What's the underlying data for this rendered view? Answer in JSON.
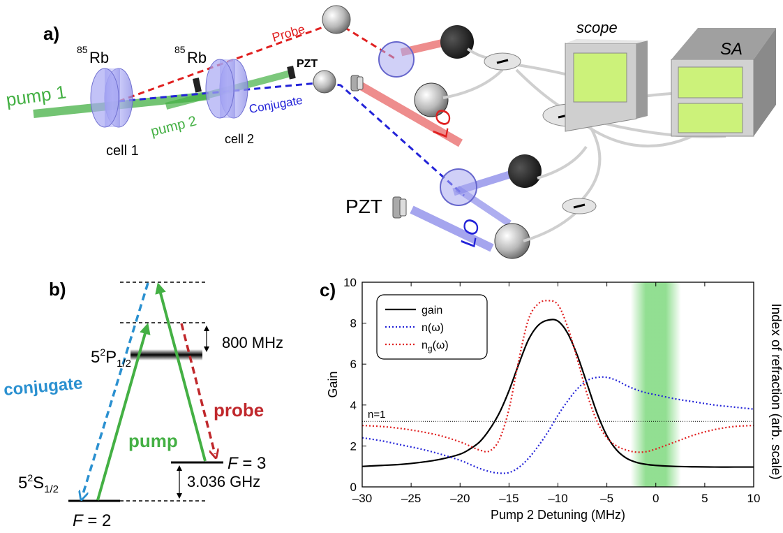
{
  "panel_a": {
    "panel_label": "a)",
    "cell1_iso_sup": "85",
    "cell1_iso": "Rb",
    "cell2_iso_sup": "85",
    "cell2_iso": "Rb",
    "pump1": "pump 1",
    "pump2": "pump 2",
    "cell1": "cell 1",
    "cell2": "cell 2",
    "probe": "Probe",
    "conjugate": "Conjugate",
    "pzt_top": "PZT",
    "pzt_bottom": "PZT",
    "lo_top": "LO",
    "lo_bottom": "LO",
    "scope": "scope",
    "sa": "SA"
  },
  "panel_b": {
    "panel_label": "b)",
    "p_state": "5",
    "p_state_sup": "2",
    "p_state_rest": "P",
    "p_state_sub": "1/2",
    "s_state": "5",
    "s_state_sup": "2",
    "s_state_rest": "S",
    "s_state_sub": "1/2",
    "detuning": "800 MHz",
    "hyperfine": "3.036 GHz",
    "conjugate": "conjugate",
    "pump": "pump",
    "probe": "probe",
    "f3_var": "F",
    "f3_eq": " = 3",
    "f2_var": "F",
    "f2_eq": " = 2"
  },
  "panel_c": {
    "panel_label": "c)",
    "legend": {
      "gain": "gain",
      "n": "n(ω)",
      "ng_main": "n",
      "ng_sub": "g",
      "ng_rest": "(ω)"
    },
    "n1_label": "n=1"
  },
  "colors": {
    "green": "#44b044",
    "red": "#e02020",
    "blue": "#2323d8",
    "conj_light": "#2a90d0",
    "probe_dark": "#c0282c",
    "gain_line": "#000000",
    "highlight": "#7fd97f"
  },
  "chart_data": {
    "type": "line",
    "xlabel": "Pump 2 Detuning (MHz)",
    "ylabel": "Gain",
    "y2label": "Index of refraction (arb. scale)",
    "xlim": [
      -30,
      10
    ],
    "ylim": [
      0,
      10
    ],
    "xticks": [
      -30,
      -25,
      -20,
      -15,
      -10,
      -5,
      0,
      5,
      10
    ],
    "xtick_labels": [
      "–30",
      "–25",
      "–20",
      "–15",
      "–10",
      "–5",
      "0",
      "5",
      "10"
    ],
    "yticks": [
      0,
      2,
      4,
      6,
      8,
      10
    ],
    "ytick_labels": [
      "0",
      "2",
      "4",
      "6",
      "8",
      "10"
    ],
    "legend_position": "top-left",
    "grid": false,
    "reference_line_y": 3.2,
    "highlight_band": [
      -2,
      2
    ],
    "x": [
      -30,
      -28,
      -26,
      -24,
      -22,
      -20,
      -19,
      -18,
      -17,
      -16,
      -15,
      -14,
      -13,
      -12,
      -11,
      -10,
      -9,
      -8,
      -7,
      -6,
      -5,
      -4,
      -3,
      -2,
      -1,
      0,
      2,
      4,
      6,
      8,
      10
    ],
    "series": [
      {
        "name": "gain",
        "style": "solid",
        "values": [
          1.0,
          1.05,
          1.1,
          1.2,
          1.35,
          1.6,
          1.85,
          2.2,
          2.8,
          3.6,
          4.7,
          6.0,
          7.2,
          7.9,
          8.15,
          8.1,
          7.5,
          6.4,
          5.0,
          3.6,
          2.5,
          1.8,
          1.4,
          1.2,
          1.1,
          1.05,
          1.0,
          0.98,
          0.97,
          0.97,
          0.97
        ]
      },
      {
        "name": "n(ω)",
        "style": "dotted",
        "values": [
          2.4,
          2.25,
          2.05,
          1.85,
          1.6,
          1.3,
          1.1,
          0.9,
          0.75,
          0.67,
          0.7,
          0.95,
          1.4,
          2.0,
          2.7,
          3.5,
          4.2,
          4.8,
          5.2,
          5.35,
          5.35,
          5.2,
          4.95,
          4.75,
          4.6,
          4.5,
          4.3,
          4.15,
          4.0,
          3.9,
          3.8
        ]
      },
      {
        "name": "ng(ω)",
        "style": "dotted",
        "values": [
          3.0,
          2.95,
          2.85,
          2.7,
          2.5,
          2.2,
          2.0,
          1.8,
          1.75,
          2.3,
          3.8,
          6.2,
          8.2,
          8.95,
          9.1,
          8.9,
          7.8,
          6.2,
          4.5,
          3.2,
          2.4,
          2.0,
          1.8,
          1.7,
          1.72,
          1.85,
          2.2,
          2.55,
          2.8,
          2.95,
          3.0
        ]
      }
    ]
  }
}
